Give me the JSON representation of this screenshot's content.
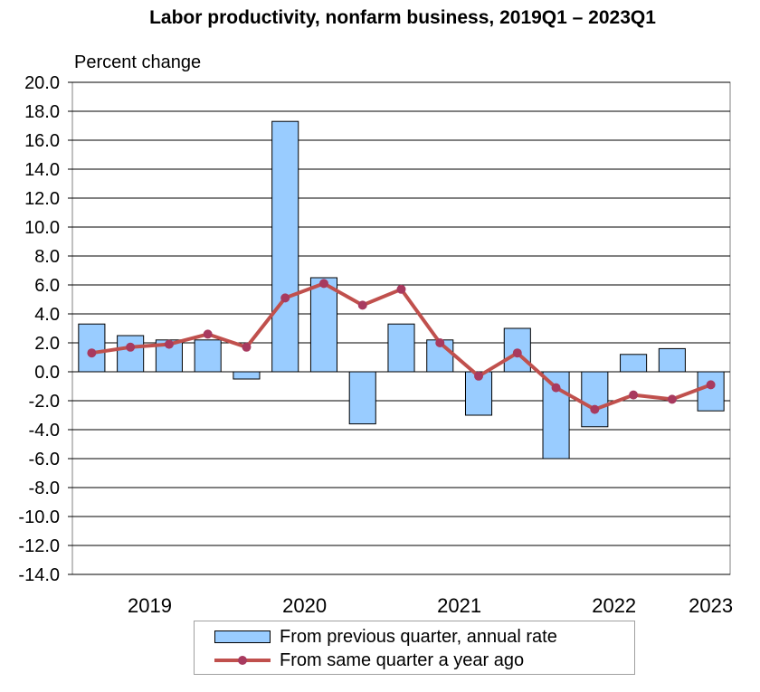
{
  "title": "Labor productivity, nonfarm business, 2019Q1  – 2023Q1",
  "y_unit": "Percent change",
  "colors": {
    "bar_fill": "#99ccff",
    "bar_stroke": "#000000",
    "line": "#c0504d",
    "marker": "#a83a5f",
    "grid": "#000000"
  },
  "legend": {
    "bar_label": "From previous quarter, annual rate",
    "line_label": "From same quarter a year ago"
  },
  "chart_data": {
    "type": "bar",
    "title": "Labor productivity, nonfarm business, 2019Q1  – 2023Q1",
    "ylabel": "Percent change",
    "ylim": [
      -14,
      20
    ],
    "y_ticks": [
      "20.0",
      "18.0",
      "16.0",
      "14.0",
      "12.0",
      "10.0",
      "8.0",
      "6.0",
      "4.0",
      "2.0",
      "0.0",
      "-2.0",
      "-4.0",
      "-6.0",
      "-8.0",
      "-10.0",
      "-12.0",
      "-14.0"
    ],
    "grid": true,
    "legend_position": "bottom",
    "categories": [
      "2019Q1",
      "2019Q2",
      "2019Q3",
      "2019Q4",
      "2020Q1",
      "2020Q2",
      "2020Q3",
      "2020Q4",
      "2021Q1",
      "2021Q2",
      "2021Q3",
      "2021Q4",
      "2022Q1",
      "2022Q2",
      "2022Q3",
      "2022Q4",
      "2023Q1"
    ],
    "year_labels": [
      {
        "label": "2019",
        "quarter_index": 1.5
      },
      {
        "label": "2020",
        "quarter_index": 5.5
      },
      {
        "label": "2021",
        "quarter_index": 9.5
      },
      {
        "label": "2022",
        "quarter_index": 13.5
      },
      {
        "label": "2023",
        "quarter_index": 16
      }
    ],
    "series": [
      {
        "name": "From previous quarter, annual rate",
        "type": "bar",
        "values": [
          3.3,
          2.5,
          2.2,
          2.2,
          -0.5,
          17.3,
          6.5,
          -3.6,
          3.3,
          2.2,
          -3.0,
          3.0,
          -6.0,
          -3.8,
          1.2,
          1.6,
          -2.7
        ]
      },
      {
        "name": "From same quarter a year ago",
        "type": "line",
        "values": [
          1.3,
          1.7,
          1.9,
          2.6,
          1.7,
          5.1,
          6.1,
          4.6,
          5.7,
          2.0,
          -0.3,
          1.3,
          -1.1,
          -2.6,
          -1.6,
          -1.9,
          -0.9
        ]
      }
    ]
  }
}
